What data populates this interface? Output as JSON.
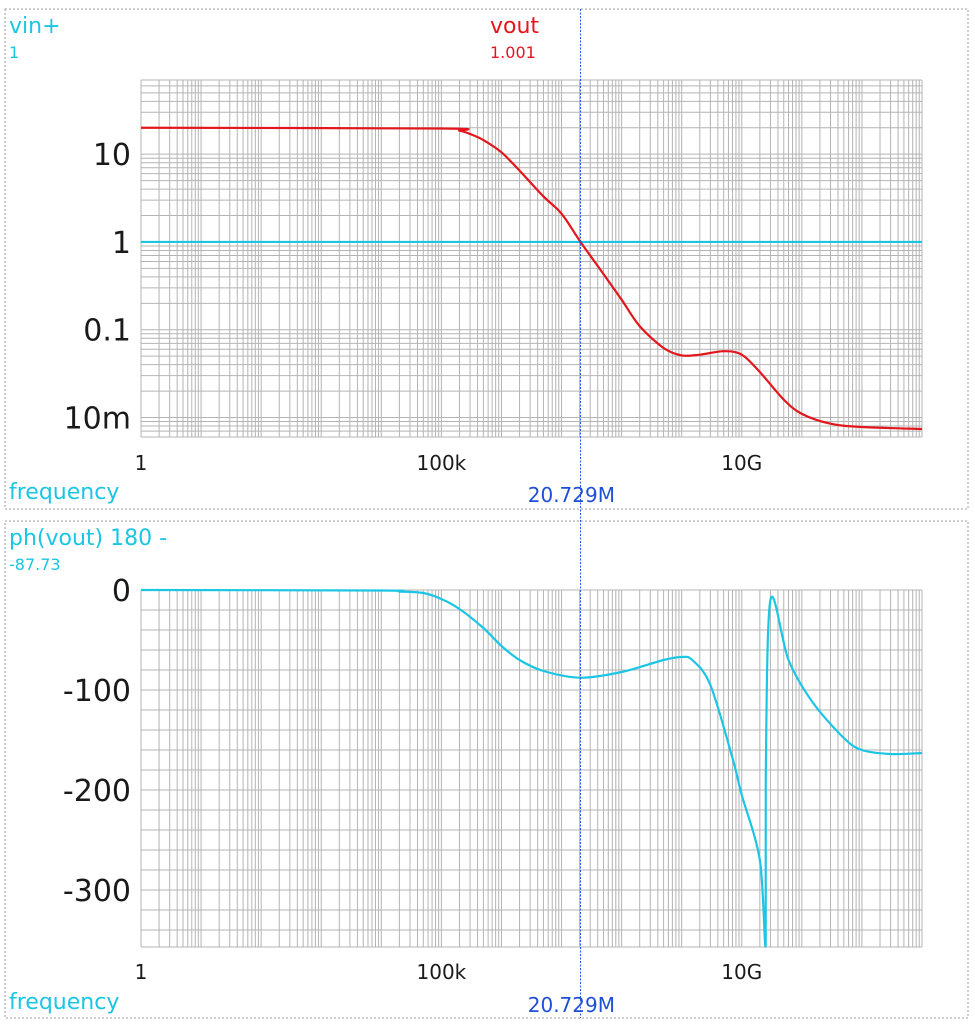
{
  "colors": {
    "vout": "#e3161c",
    "vin": "#1bc6e4",
    "phase": "#1bc6e4",
    "cursor": "#1f4fd6",
    "grid": "#b4b4b4",
    "frame": "#9e9e9e",
    "text": "#1a1a1a"
  },
  "cursor": {
    "frequency_hz": 20729000,
    "label": "20.729M"
  },
  "chart_data": [
    {
      "type": "line",
      "x_scale": "log",
      "y_scale": "log",
      "xlim": [
        1,
        10000000000000
      ],
      "ylim": [
        0.006,
        70
      ],
      "x_label": "frequency",
      "x_ticks": [
        {
          "value": 1,
          "label": "1"
        },
        {
          "value": 100000,
          "label": "100k"
        },
        {
          "value": 10000000000,
          "label": "10G"
        }
      ],
      "y_ticks": [
        {
          "value": 10,
          "label": "10"
        },
        {
          "value": 1,
          "label": "1"
        },
        {
          "value": 0.1,
          "label": "0.1"
        },
        {
          "value": 0.01,
          "label": "10m"
        }
      ],
      "grid": true,
      "series": [
        {
          "name": "vin+",
          "cursor_value": "1",
          "color": "#1bc6e4",
          "x": [
            1,
            10000000000000
          ],
          "y": [
            1,
            1
          ]
        },
        {
          "name": "vout",
          "cursor_value": "1.001",
          "color": "#e3161c",
          "x": [
            1,
            100000,
            200000,
            300000,
            500000,
            1000000,
            2000000,
            5000000,
            10000000,
            20729000,
            50000000,
            100000000,
            200000000,
            500000000,
            1000000000,
            2000000000,
            5000000000,
            10000000000,
            20000000000,
            50000000000,
            100000000000,
            300000000000,
            1000000000000,
            10000000000000
          ],
          "y": [
            20,
            19.6,
            18.5,
            17,
            14.5,
            10.5,
            6.5,
            3.3,
            2.1,
            1.0,
            0.43,
            0.22,
            0.11,
            0.062,
            0.051,
            0.052,
            0.057,
            0.052,
            0.033,
            0.016,
            0.011,
            0.0085,
            0.0078,
            0.0074
          ]
        }
      ]
    },
    {
      "type": "line",
      "x_scale": "log",
      "y_scale": "linear",
      "xlim": [
        1,
        10000000000000
      ],
      "ylim": [
        -357,
        0
      ],
      "x_label": "frequency",
      "x_ticks": [
        {
          "value": 1,
          "label": "1"
        },
        {
          "value": 100000,
          "label": "100k"
        },
        {
          "value": 10000000000,
          "label": "10G"
        }
      ],
      "y_ticks": [
        {
          "value": 0,
          "label": "0"
        },
        {
          "value": -100,
          "label": "-100"
        },
        {
          "value": -200,
          "label": "-200"
        },
        {
          "value": -300,
          "label": "-300"
        }
      ],
      "grid": true,
      "series": [
        {
          "name": "ph(vout) 180 -",
          "cursor_value": "-87.73",
          "color": "#1bc6e4",
          "x": [
            1,
            10000,
            20000,
            50000,
            100000,
            200000,
            500000,
            1000000,
            2000000,
            5000000,
            20729000,
            100000000,
            500000000,
            1000000000,
            1500000000,
            3000000000,
            7000000000,
            10000000000,
            20000000000,
            25000000000,
            25100000000,
            30000000000,
            60000000000,
            150000000000,
            500000000000,
            1000000000000,
            3000000000000,
            10000000000000
          ],
          "y": [
            0,
            -0.5,
            -1.5,
            -3,
            -9,
            -19,
            -38,
            -56,
            -70,
            -81,
            -87.7,
            -82,
            -70,
            -67,
            -70,
            -95,
            -168,
            -205,
            -270,
            -355,
            -185,
            -10,
            -70,
            -112,
            -148,
            -160,
            -164,
            -163
          ]
        }
      ]
    }
  ]
}
